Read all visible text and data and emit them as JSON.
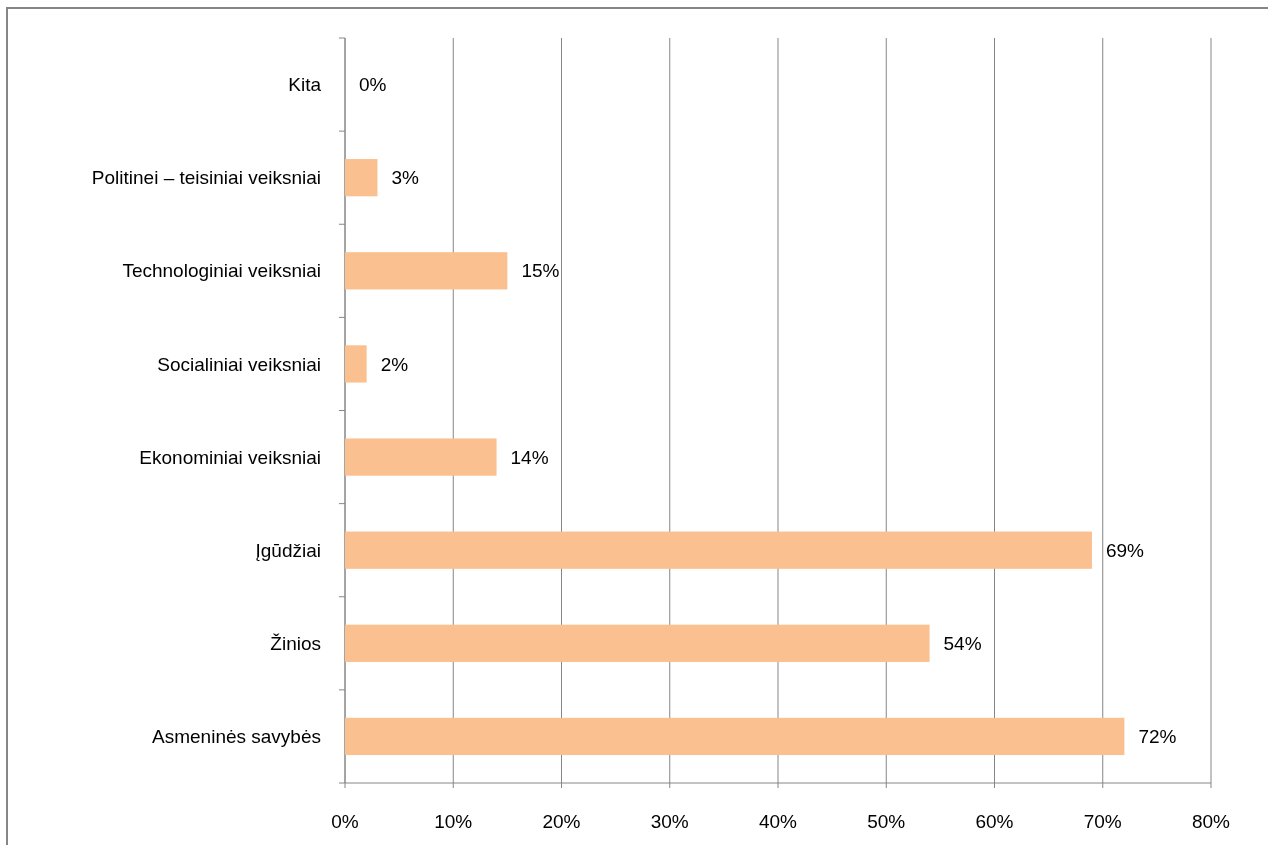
{
  "chart_data": {
    "type": "bar",
    "orientation": "horizontal",
    "categories": [
      "Kita",
      "Politinei – teisiniai veiksniai",
      "Technologiniai veiksniai",
      "Socialiniai veiksniai",
      "Ekonominiai veiksniai",
      "Įgūdžiai",
      "Žinios",
      "Asmeninės savybės"
    ],
    "values": [
      0,
      3,
      15,
      2,
      14,
      69,
      54,
      72
    ],
    "value_labels": [
      "0%",
      "3%",
      "15%",
      "2%",
      "14%",
      "69%",
      "54%",
      "72%"
    ],
    "color": "#fac090",
    "xlim": [
      0,
      80
    ],
    "xticks": [
      {
        "value": 0,
        "label": "0%"
      },
      {
        "value": 10,
        "label": "10%"
      },
      {
        "value": 20,
        "label": "20%"
      },
      {
        "value": 30,
        "label": "30%"
      },
      {
        "value": 40,
        "label": "40%"
      },
      {
        "value": 50,
        "label": "50%"
      },
      {
        "value": 60,
        "label": "60%"
      },
      {
        "value": 70,
        "label": "70%"
      },
      {
        "value": 80,
        "label": "80%"
      }
    ],
    "grid": "x"
  }
}
